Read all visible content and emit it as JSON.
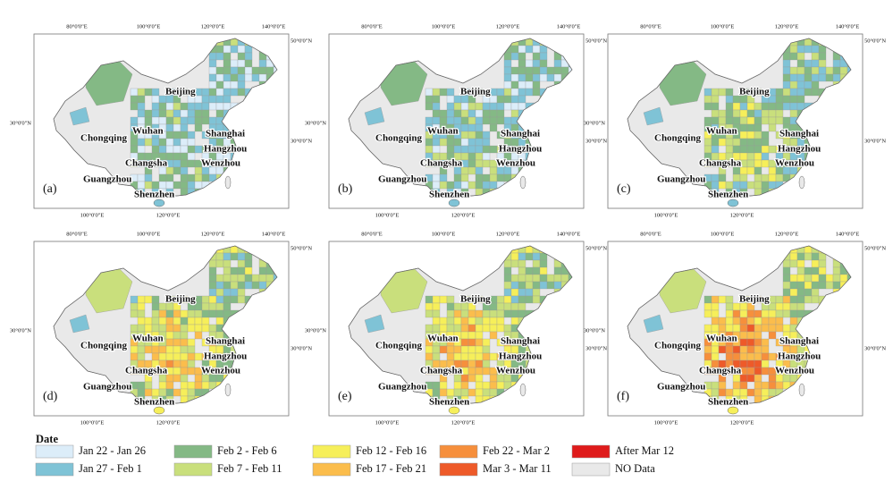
{
  "map": {
    "lon_top": [
      "80°0'0\"E",
      "100°0'0\"E",
      "120°0'0\"E",
      "140°0'0\"E"
    ],
    "lon_bottom": [
      "100°0'0\"E",
      "120°0'0\"E"
    ],
    "lat_left": "30°0'0\"N",
    "lat_right": [
      "50°0'0\"N",
      "30°0'0\"N"
    ],
    "cities": [
      "Beijing",
      "Chongqing",
      "Wuhan",
      "Shanghai",
      "Hangzhou",
      "Wenzhou",
      "Changsha",
      "Guangzhou",
      "Shenzhen"
    ],
    "panels": [
      "(a)",
      "(b)",
      "(c)",
      "(d)",
      "(e)",
      "(f)"
    ]
  },
  "legend": {
    "title": "Date",
    "items": [
      {
        "name": "Jan 22 - Jan 26",
        "color": "#dcedf9"
      },
      {
        "name": "Jan 27 - Feb 1",
        "color": "#7fc3d6"
      },
      {
        "name": "Feb 2 - Feb 6",
        "color": "#84b985"
      },
      {
        "name": "Feb 7 - Feb 11",
        "color": "#c9df7c"
      },
      {
        "name": "Feb 12 - Feb 16",
        "color": "#f6ef5a"
      },
      {
        "name": "Feb 17 - Feb 21",
        "color": "#fbbd4c"
      },
      {
        "name": "Feb 22 - Mar 2",
        "color": "#f68f3c"
      },
      {
        "name": "Mar 3 - Mar 11",
        "color": "#ee5a29"
      },
      {
        "name": "After Mar 12",
        "color": "#df1b1b"
      },
      {
        "name": "NO Data",
        "color": "#e9e9e9"
      }
    ]
  }
}
